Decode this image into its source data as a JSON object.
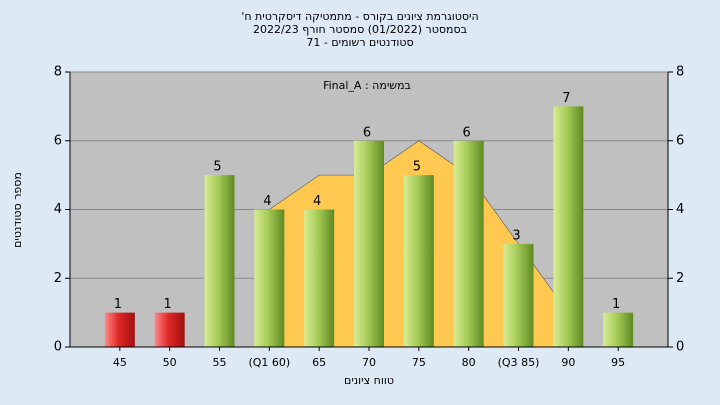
{
  "chart_data": {
    "type": "bar",
    "title": "'היסטוגרמת ציונים בקורס - מתמטיקה דיסקרטית ח",
    "subtitle": "בסמסטר  (01/2022)  סמסטר חורף 2022/23",
    "subtitle2": "סטודנטים רשומים - 71",
    "annotation": "Final_A : במשימה",
    "x_label": "טווח ציונים",
    "y_label": "מספר סטודנטים",
    "categories": [
      "45",
      "50",
      "55",
      "(Q1 60)",
      "65",
      "70",
      "75",
      "80",
      "(Q3 85)",
      "90",
      "95"
    ],
    "series": [
      {
        "type": "area",
        "color": "#ffc850",
        "values": [
          null,
          null,
          null,
          4,
          5,
          5,
          6,
          5,
          3,
          1,
          null
        ]
      },
      {
        "type": "bar",
        "colors": [
          "#e02828",
          "#e02828",
          "#8cbc3c",
          "#8cbc3c",
          "#8cbc3c",
          "#8cbc3c",
          "#8cbc3c",
          "#8cbc3c",
          "#8cbc3c",
          "#8cbc3c",
          "#8cbc3c"
        ],
        "values": [
          1,
          1,
          5,
          4,
          4,
          6,
          5,
          6,
          3,
          7,
          1
        ]
      }
    ],
    "ylim": [
      0,
      8
    ],
    "yticks": [
      0,
      2,
      4,
      6,
      8
    ],
    "grid": true,
    "right_axis": true
  }
}
